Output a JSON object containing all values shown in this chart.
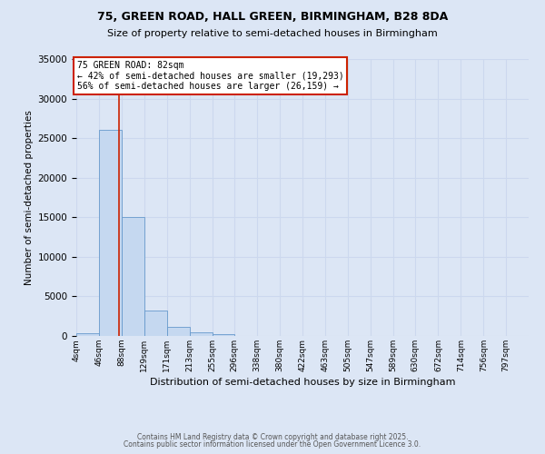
{
  "title1": "75, GREEN ROAD, HALL GREEN, BIRMINGHAM, B28 8DA",
  "title2": "Size of property relative to semi-detached houses in Birmingham",
  "xlabel": "Distribution of semi-detached houses by size in Birmingham",
  "ylabel": "Number of semi-detached properties",
  "property_size": 82,
  "property_label": "75 GREEN ROAD: 82sqm",
  "pct_smaller": 42,
  "count_smaller": 19293,
  "pct_larger": 56,
  "count_larger": 26159,
  "bin_edges": [
    4,
    46,
    88,
    129,
    171,
    213,
    255,
    296,
    338,
    380,
    422,
    463,
    505,
    547,
    589,
    630,
    672,
    714,
    756,
    797,
    839
  ],
  "bin_counts": [
    400,
    26000,
    15000,
    3200,
    1100,
    450,
    200,
    50,
    0,
    0,
    0,
    0,
    0,
    0,
    0,
    0,
    0,
    0,
    0,
    0
  ],
  "bar_color": "#c5d8f0",
  "bar_edge_color": "#6699cc",
  "vline_color": "#cc2200",
  "vline_x": 82,
  "annotation_box_color": "#ffffff",
  "annotation_box_edge": "#cc2200",
  "grid_color": "#ccd8ee",
  "bg_color": "#dce6f5",
  "ylim": [
    0,
    35000
  ],
  "yticks": [
    0,
    5000,
    10000,
    15000,
    20000,
    25000,
    30000,
    35000
  ],
  "footer1": "Contains HM Land Registry data © Crown copyright and database right 2025.",
  "footer2": "Contains public sector information licensed under the Open Government Licence 3.0."
}
